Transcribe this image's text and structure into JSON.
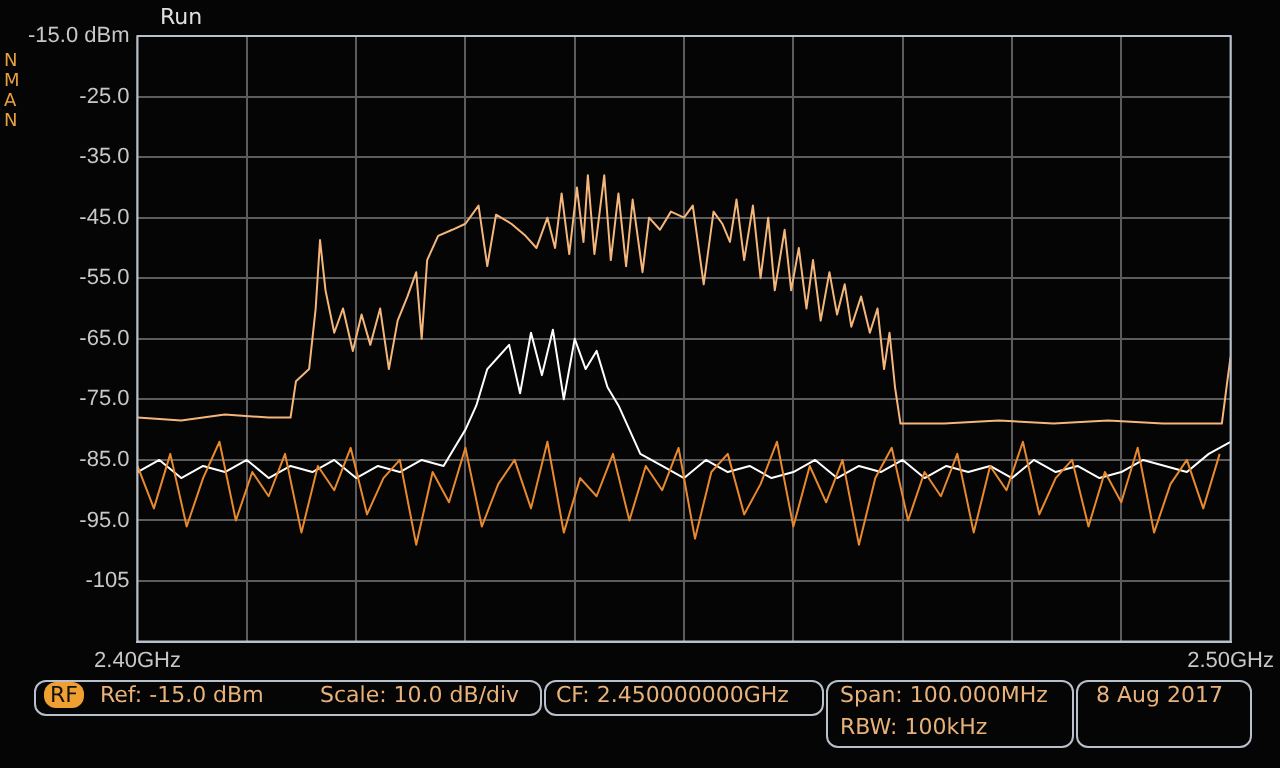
{
  "chart_data": {
    "type": "line",
    "annotations": [
      "Run",
      "NMAN",
      "RF",
      "Ref: -15.0 dBm",
      "Scale: 10.0 dB/div",
      "CF: 2.450000000GHz",
      "Span: 100.000MHz",
      "RBW: 100kHz",
      "8 Aug 2017"
    ],
    "xlim": [
      2.4,
      2.5
    ],
    "xticks": [
      {
        "value": 2.4,
        "label": "2.40GHz"
      },
      {
        "value": 2.41,
        "label": null
      },
      {
        "value": 2.42,
        "label": null
      },
      {
        "value": 2.43,
        "label": null
      },
      {
        "value": 2.44,
        "label": null
      },
      {
        "value": 2.45,
        "label": null
      },
      {
        "value": 2.46,
        "label": null
      },
      {
        "value": 2.47,
        "label": null
      },
      {
        "value": 2.48,
        "label": null
      },
      {
        "value": 2.49,
        "label": null
      },
      {
        "value": 2.5,
        "label": "2.50GHz"
      }
    ],
    "ylim": [
      -115,
      -15
    ],
    "yticks": [
      {
        "value": -15,
        "label": "-15.0 dBm"
      },
      {
        "value": -25,
        "label": "-25.0"
      },
      {
        "value": -35,
        "label": "-35.0"
      },
      {
        "value": -45,
        "label": "-45.0"
      },
      {
        "value": -55,
        "label": "-55.0"
      },
      {
        "value": -65,
        "label": "-65.0"
      },
      {
        "value": -75,
        "label": "-75.0"
      },
      {
        "value": -85,
        "label": "-85.0"
      },
      {
        "value": -95,
        "label": "-95.0"
      },
      -105
    ],
    "grid": true,
    "marker": "none",
    "series": [
      {
        "color": "#e8892e",
        "x": [
          2.4,
          2.4015,
          2.403,
          2.4045,
          2.406,
          2.4075,
          2.409,
          2.4105,
          2.412,
          2.4135,
          2.415,
          2.4165,
          2.418,
          2.4195,
          2.421,
          2.4225,
          2.424,
          2.4255,
          2.427,
          2.4285,
          2.43,
          2.4315,
          2.433,
          2.4345,
          2.436,
          2.4375,
          2.439,
          2.4405,
          2.442,
          2.4435,
          2.445,
          2.4465,
          2.448,
          2.4495,
          2.451,
          2.4525,
          2.454,
          2.4555,
          2.457,
          2.4585,
          2.46,
          2.4615,
          2.463,
          2.4645,
          2.466,
          2.4675,
          2.469,
          2.4705,
          2.472,
          2.4735,
          2.475,
          2.4765,
          2.478,
          2.4795,
          2.481,
          2.4825,
          2.484,
          2.4855,
          2.487,
          2.4885,
          2.49,
          2.4915,
          2.493,
          2.4945,
          2.496,
          2.4975,
          2.499
        ],
        "values": [
          -86,
          -93,
          -84,
          -96,
          -88,
          -82,
          -95,
          -87,
          -91,
          -84,
          -97,
          -86,
          -90,
          -83,
          -94,
          -88,
          -85,
          -99,
          -87,
          -92,
          -83,
          -96,
          -89,
          -85,
          -93,
          -82,
          -97,
          -88,
          -91,
          -84,
          -95,
          -86,
          -90,
          -83,
          -98,
          -87,
          -84,
          -94,
          -89,
          -82,
          -96,
          -86,
          -92,
          -85,
          -99,
          -88,
          -83,
          -95,
          -87,
          -91,
          -84,
          -97,
          -86,
          -90,
          -82,
          -94,
          -88,
          -85,
          -96,
          -87,
          -92,
          -83,
          -97,
          -89,
          -85,
          -93,
          -84
        ]
      },
      {
        "color": "#ffffff",
        "x": [
          2.4,
          2.402,
          2.404,
          2.406,
          2.408,
          2.41,
          2.412,
          2.414,
          2.416,
          2.418,
          2.42,
          2.422,
          2.424,
          2.426,
          2.428,
          2.429,
          2.43,
          2.431,
          2.432,
          2.433,
          2.434,
          2.435,
          2.436,
          2.437,
          2.438,
          2.439,
          2.44,
          2.441,
          2.442,
          2.443,
          2.444,
          2.445,
          2.446,
          2.448,
          2.45,
          2.452,
          2.454,
          2.456,
          2.458,
          2.46,
          2.462,
          2.464,
          2.466,
          2.468,
          2.47,
          2.472,
          2.474,
          2.476,
          2.478,
          2.48,
          2.482,
          2.484,
          2.486,
          2.488,
          2.49,
          2.492,
          2.494,
          2.496,
          2.498,
          2.5
        ],
        "values": [
          -87,
          -85,
          -88,
          -86,
          -87,
          -85,
          -88,
          -86,
          -87,
          -85,
          -88,
          -86,
          -87,
          -85,
          -86,
          -83,
          -80,
          -76,
          -70,
          -68,
          -66,
          -74,
          -64,
          -71,
          -63.5,
          -75,
          -65,
          -70,
          -67,
          -73,
          -76,
          -80,
          -84,
          -86,
          -88,
          -85,
          -87,
          -86,
          -88,
          -87,
          -85,
          -88,
          -86,
          -87,
          -85,
          -88,
          -86,
          -87,
          -86,
          -88,
          -85,
          -87,
          -86,
          -88,
          -87,
          -85,
          -86,
          -87,
          -84,
          -82
        ]
      },
      {
        "color": "#f4b67a",
        "x": [
          2.4,
          2.404,
          2.408,
          2.412,
          2.414,
          2.4145,
          2.4157,
          2.4163,
          2.4167,
          2.4172,
          2.418,
          2.4188,
          2.4197,
          2.4205,
          2.4213,
          2.4222,
          2.423,
          2.4238,
          2.4247,
          2.4255,
          2.426,
          2.4265,
          2.4275,
          2.4288,
          2.43,
          2.4312,
          2.432,
          2.4328,
          2.4342,
          2.4355,
          2.4365,
          2.4375,
          2.4382,
          2.4388,
          2.4395,
          2.4402,
          2.4408,
          2.4412,
          2.4418,
          2.4427,
          2.4433,
          2.444,
          2.4447,
          2.4453,
          2.4462,
          2.4468,
          2.4478,
          2.4488,
          2.45,
          2.4508,
          2.4518,
          2.4527,
          2.4535,
          2.4542,
          2.4548,
          2.4555,
          2.4563,
          2.457,
          2.4577,
          2.4583,
          2.4592,
          2.4598,
          2.4605,
          2.4612,
          2.4618,
          2.4625,
          2.4633,
          2.464,
          2.4647,
          2.4653,
          2.4662,
          2.467,
          2.4677,
          2.4683,
          2.4688,
          2.4693,
          2.4698,
          2.4738,
          2.4788,
          2.4838,
          2.4888,
          2.4938,
          2.4992,
          2.4997,
          2.5
        ],
        "values": [
          -78,
          -78.5,
          -77.5,
          -78,
          -78,
          -72,
          -70,
          -60,
          -48.7,
          -57,
          -64,
          -60,
          -67,
          -61,
          -66,
          -60,
          -70,
          -62,
          -58,
          -54,
          -65,
          -52,
          -48,
          -47,
          -46,
          -43,
          -53,
          -44.5,
          -46,
          -48,
          -50,
          -45,
          -50,
          -41,
          -51,
          -40,
          -49,
          -38,
          -51,
          -38,
          -52,
          -41,
          -53,
          -42,
          -54,
          -45,
          -47,
          -44,
          -45,
          -43,
          -56,
          -44,
          -46,
          -49,
          -42,
          -52,
          -43,
          -55,
          -45,
          -57,
          -47,
          -57,
          -50,
          -60,
          -52,
          -62,
          -54,
          -61,
          -56,
          -63,
          -58,
          -64,
          -60,
          -70,
          -64,
          -73,
          -79,
          -79,
          -78.5,
          -79,
          -78.5,
          -79,
          -79,
          -72,
          -68
        ]
      }
    ]
  }
}
